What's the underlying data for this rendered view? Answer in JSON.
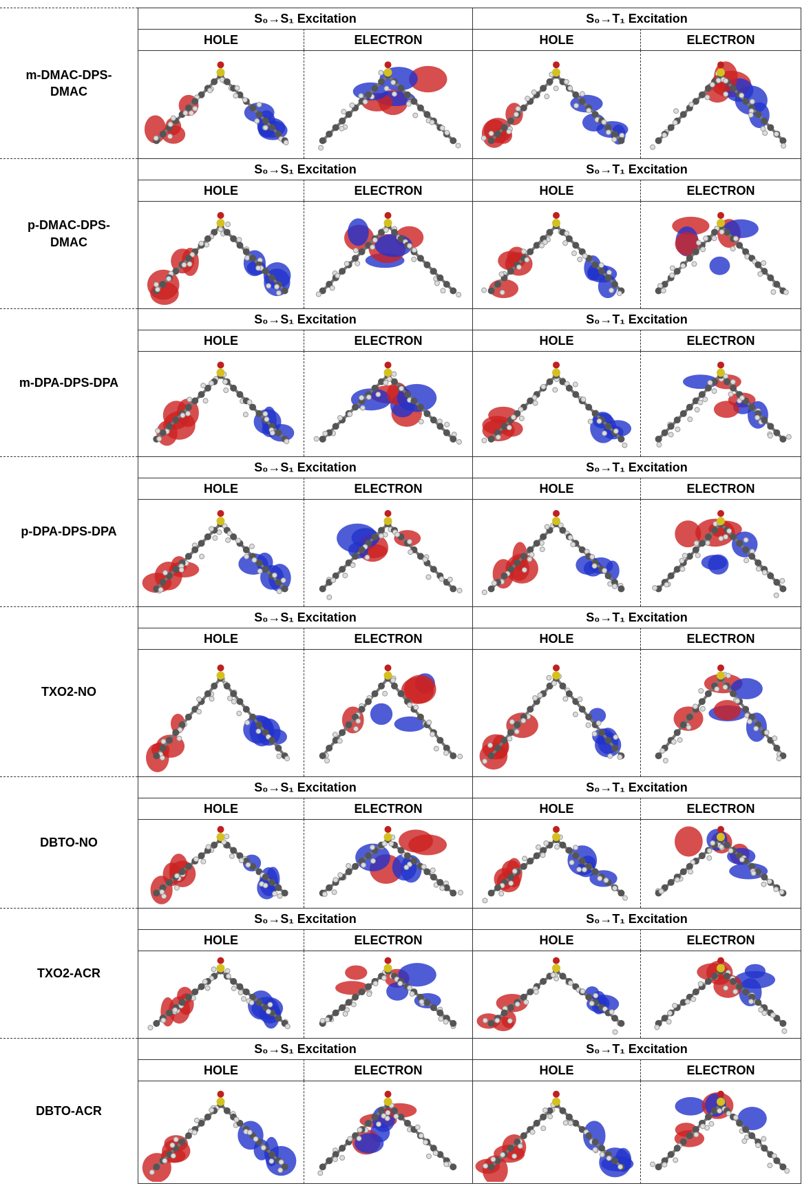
{
  "headers": {
    "s1": "S₀→S₁ Excitation",
    "t1": "S₀→T₁ Excitation",
    "hole": "HOLE",
    "electron": "ELECTRON"
  },
  "rows": [
    {
      "name": "m-DMAC-DPS-DMAC"
    },
    {
      "name": "p-DMAC-DPS-DMAC"
    },
    {
      "name": "m-DPA-DPS-DPA"
    },
    {
      "name": "p-DPA-DPS-DPA"
    },
    {
      "name": "TXO2-NO"
    },
    {
      "name": "DBTO-NO"
    },
    {
      "name": "TXO2-ACR"
    },
    {
      "name": "DBTO-ACR"
    }
  ]
}
